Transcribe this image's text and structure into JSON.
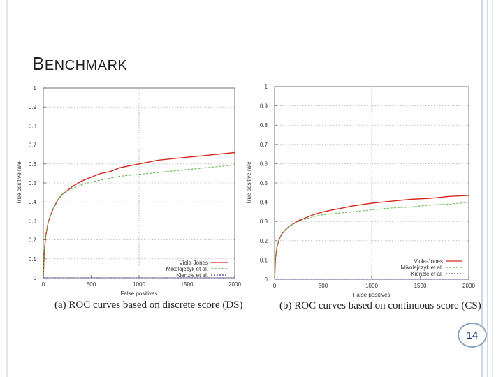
{
  "slide": {
    "title_cap": "B",
    "title_rest": "ENCHMARK",
    "page_number": "14"
  },
  "colors": {
    "viola_jones": "#d42a1e",
    "mikolajczyk": "#5cb84a",
    "kienzle": "#3a3a9a",
    "grid": "#9a9a9a"
  },
  "chart_data": [
    {
      "type": "line",
      "caption": "(a) ROC curves based on discrete score (DS)",
      "xlabel": "False positives",
      "ylabel": "True positive rate",
      "xlim": [
        0,
        2000
      ],
      "ylim": [
        0,
        1
      ],
      "xticks": [
        "0",
        "500",
        "1000",
        "1500",
        "2000"
      ],
      "yticks": [
        "0",
        "0.1",
        "0.2",
        "0.3",
        "0.4",
        "0.5",
        "0.6",
        "0.7",
        "0.8",
        "0.9",
        "1"
      ],
      "legend_position": "bottom-right",
      "grid": true,
      "series": [
        {
          "name": "Viola-Jones",
          "x": [
            0,
            10,
            25,
            50,
            75,
            100,
            150,
            200,
            250,
            300,
            400,
            500,
            600,
            700,
            800,
            1000,
            1200,
            1400,
            1600,
            1800,
            2000
          ],
          "y": [
            0.0,
            0.14,
            0.22,
            0.29,
            0.33,
            0.36,
            0.41,
            0.44,
            0.46,
            0.48,
            0.51,
            0.53,
            0.55,
            0.56,
            0.58,
            0.6,
            0.62,
            0.63,
            0.64,
            0.65,
            0.66
          ]
        },
        {
          "name": "Mikolajczyk et al.",
          "x": [
            0,
            10,
            25,
            50,
            75,
            100,
            150,
            200,
            250,
            300,
            400,
            500,
            600,
            700,
            800,
            1000,
            1200,
            1400,
            1600,
            1800,
            2000
          ],
          "y": [
            0.0,
            0.14,
            0.22,
            0.29,
            0.33,
            0.36,
            0.41,
            0.44,
            0.46,
            0.47,
            0.49,
            0.505,
            0.515,
            0.525,
            0.535,
            0.545,
            0.555,
            0.565,
            0.575,
            0.585,
            0.595
          ]
        },
        {
          "name": "Kienzle et al.",
          "x": [
            0,
            2000
          ],
          "y": [
            0.0,
            0.0
          ]
        }
      ]
    },
    {
      "type": "line",
      "caption": "(b) ROC curves based on continuous score (CS)",
      "xlabel": "False positives",
      "ylabel": "True positive rate",
      "xlim": [
        0,
        2000
      ],
      "ylim": [
        0,
        1
      ],
      "xticks": [
        "0",
        "500",
        "1000",
        "1500",
        "2000"
      ],
      "yticks": [
        "0",
        "0.1",
        "0.2",
        "0.3",
        "0.4",
        "0.5",
        "0.6",
        "0.7",
        "0.8",
        "0.9",
        "1"
      ],
      "legend_position": "bottom-right",
      "grid": true,
      "series": [
        {
          "name": "Viola-Jones",
          "x": [
            0,
            10,
            25,
            50,
            75,
            100,
            150,
            200,
            250,
            300,
            400,
            500,
            600,
            700,
            800,
            1000,
            1200,
            1400,
            1600,
            1800,
            2000
          ],
          "y": [
            0.0,
            0.11,
            0.17,
            0.21,
            0.235,
            0.25,
            0.275,
            0.29,
            0.305,
            0.315,
            0.335,
            0.35,
            0.36,
            0.37,
            0.38,
            0.395,
            0.405,
            0.415,
            0.42,
            0.43,
            0.435
          ]
        },
        {
          "name": "Mikolajczyk et al.",
          "x": [
            0,
            10,
            25,
            50,
            75,
            100,
            150,
            200,
            250,
            300,
            400,
            500,
            600,
            700,
            800,
            1000,
            1200,
            1400,
            1600,
            1800,
            2000
          ],
          "y": [
            0.0,
            0.11,
            0.17,
            0.21,
            0.235,
            0.25,
            0.275,
            0.29,
            0.3,
            0.31,
            0.325,
            0.335,
            0.34,
            0.345,
            0.35,
            0.36,
            0.37,
            0.375,
            0.385,
            0.39,
            0.4
          ]
        },
        {
          "name": "Kienzle et al.",
          "x": [
            0,
            2000
          ],
          "y": [
            0.0,
            0.0
          ]
        }
      ]
    }
  ]
}
